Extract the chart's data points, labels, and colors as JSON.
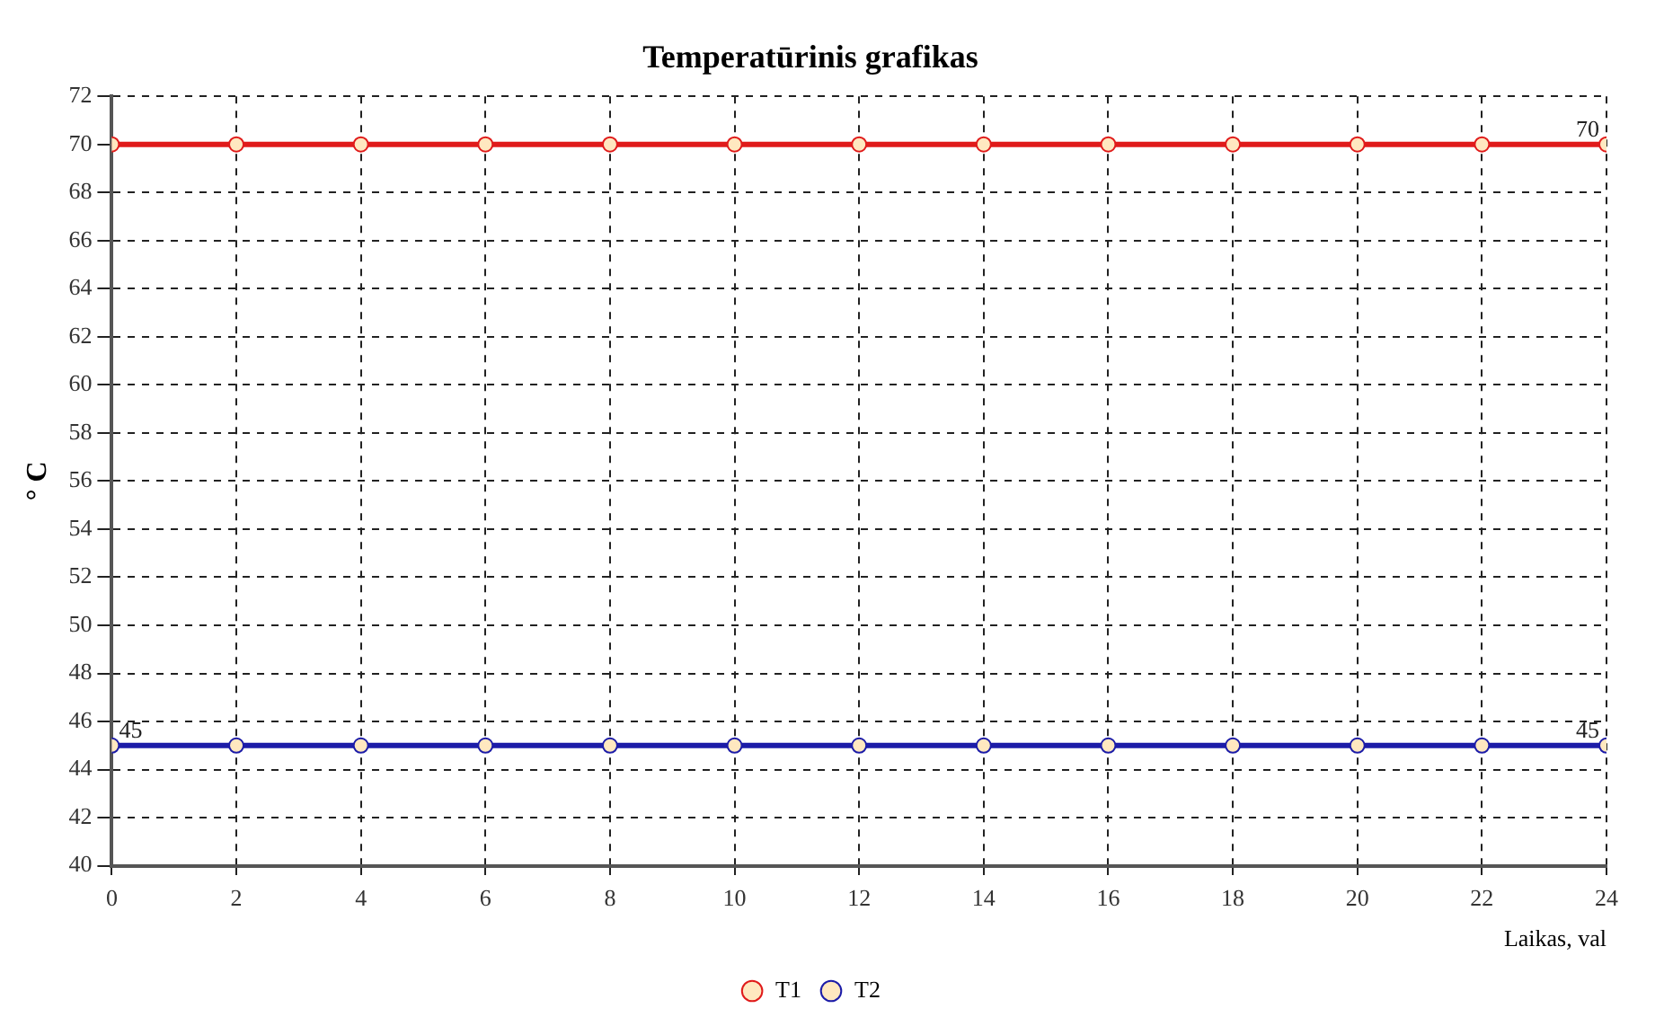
{
  "chart_data": {
    "type": "line",
    "title": "Temperatūrinis grafikas",
    "xlabel": "Laikas, val",
    "ylabel": "° C",
    "x": [
      0,
      2,
      4,
      6,
      8,
      10,
      12,
      14,
      16,
      18,
      20,
      22,
      24
    ],
    "series": [
      {
        "name": "T1",
        "color": "#e01b1b",
        "values": [
          70,
          70,
          70,
          70,
          70,
          70,
          70,
          70,
          70,
          70,
          70,
          70,
          70
        ],
        "value_labels": [
          null,
          null,
          null,
          null,
          null,
          null,
          null,
          null,
          null,
          null,
          null,
          null,
          "70"
        ]
      },
      {
        "name": "T2",
        "color": "#1c1ca8",
        "values": [
          45,
          45,
          45,
          45,
          45,
          45,
          45,
          45,
          45,
          45,
          45,
          45,
          45
        ],
        "value_labels": [
          "45",
          null,
          null,
          null,
          null,
          null,
          null,
          null,
          null,
          null,
          null,
          null,
          "45"
        ]
      }
    ],
    "xlim": [
      0,
      24
    ],
    "xticks": [
      0,
      2,
      4,
      6,
      8,
      10,
      12,
      14,
      16,
      18,
      20,
      22,
      24
    ],
    "ylim": [
      40,
      72
    ],
    "yticks": [
      40,
      42,
      44,
      46,
      48,
      50,
      52,
      54,
      56,
      58,
      60,
      62,
      64,
      66,
      68,
      70,
      72
    ],
    "grid": true,
    "legend": "bottom",
    "marker": "circle",
    "line_style": "solid"
  }
}
